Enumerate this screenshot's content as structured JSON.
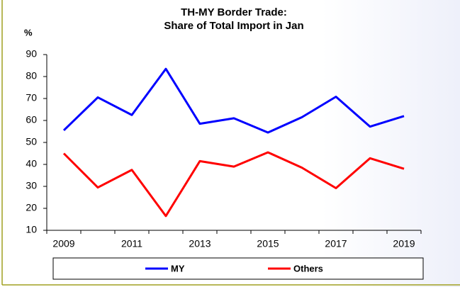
{
  "chart_data": {
    "type": "line",
    "title": "TH-MY Border Trade:",
    "subtitle": "Share of Total Import in Jan",
    "y_label": "%",
    "categories": [
      "2009",
      null,
      "2011",
      null,
      "2013",
      null,
      "2015",
      null,
      "2017",
      null,
      "2019"
    ],
    "series": [
      {
        "name": "MY",
        "color": "#0000ff",
        "values": [
          55.5,
          70.5,
          62.5,
          83.5,
          58.5,
          61,
          54.5,
          61.5,
          70.8,
          57.2,
          62
        ]
      },
      {
        "name": "Others",
        "color": "#ff0000",
        "values": [
          45,
          29.5,
          37.5,
          16.5,
          41.5,
          39,
          45.5,
          38.5,
          29.2,
          42.8,
          38
        ]
      }
    ],
    "ylim": [
      10,
      90
    ],
    "yticks": [
      10,
      20,
      30,
      40,
      50,
      60,
      70,
      80,
      90
    ],
    "grid": false,
    "legend": "bottom"
  }
}
